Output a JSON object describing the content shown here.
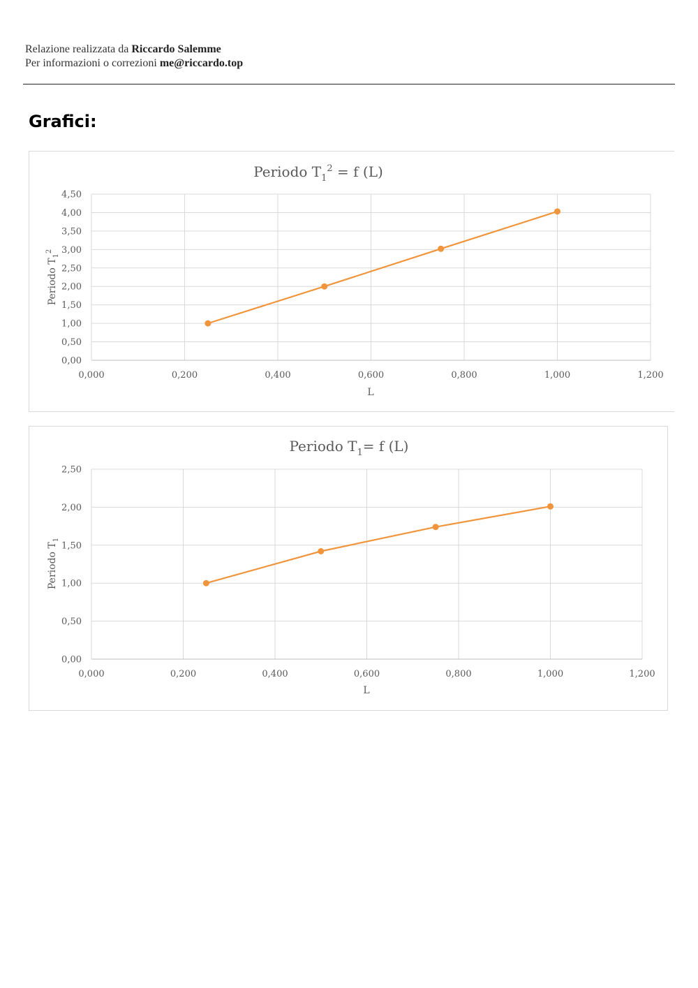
{
  "header": {
    "line1_prefix": "Relazione realizzata da",
    "author": "Riccardo Salemme",
    "line2_prefix": "Per informazioni o correzioni",
    "email": "me@riccardo.top"
  },
  "section_title": "Grafici:",
  "charts": [
    {
      "title_main": "Periodo T",
      "title_sub": "1",
      "title_sup": "2",
      "title_rest": " = f (L)",
      "ylabel_main": "Periodo T",
      "ylabel_sub": "1",
      "ylabel_sup": "2",
      "xlabel": "L"
    },
    {
      "title_main": "Periodo T",
      "title_sub": "1",
      "title_sup": "",
      "title_rest": "= f (L)",
      "ylabel_main": "Periodo T",
      "ylabel_sub": "1",
      "ylabel_sup": "",
      "xlabel": "L"
    }
  ],
  "chart_data": [
    {
      "type": "line",
      "title": "Periodo T1² = f (L)",
      "xlabel": "L",
      "ylabel": "Periodo T1²",
      "x": [
        0.25,
        0.5,
        0.75,
        1.0
      ],
      "series": [
        {
          "values": [
            1.0,
            2.0,
            3.02,
            4.03
          ]
        }
      ],
      "xlim": [
        0,
        1.2
      ],
      "ylim": [
        0,
        4.5
      ],
      "x_ticks": [
        "0,000",
        "0,200",
        "0,400",
        "0,600",
        "0,800",
        "1,000",
        "1,200"
      ],
      "y_ticks": [
        "0,00",
        "0,50",
        "1,00",
        "1,50",
        "2,00",
        "2,50",
        "3,00",
        "3,50",
        "4,00",
        "4,50"
      ],
      "grid": true,
      "color": "#f0953c"
    },
    {
      "type": "line",
      "title": "Periodo T1= f (L)",
      "xlabel": "L",
      "ylabel": "Periodo T1",
      "x": [
        0.25,
        0.5,
        0.75,
        1.0
      ],
      "series": [
        {
          "values": [
            1.0,
            1.42,
            1.74,
            2.01
          ]
        }
      ],
      "xlim": [
        0,
        1.2
      ],
      "ylim": [
        0,
        2.5
      ],
      "x_ticks": [
        "0,000",
        "0,200",
        "0,400",
        "0,600",
        "0,800",
        "1,000",
        "1,200"
      ],
      "y_ticks": [
        "0,00",
        "0,50",
        "1,00",
        "1,50",
        "2,00",
        "2,50"
      ],
      "grid": true,
      "color": "#f0953c"
    }
  ]
}
